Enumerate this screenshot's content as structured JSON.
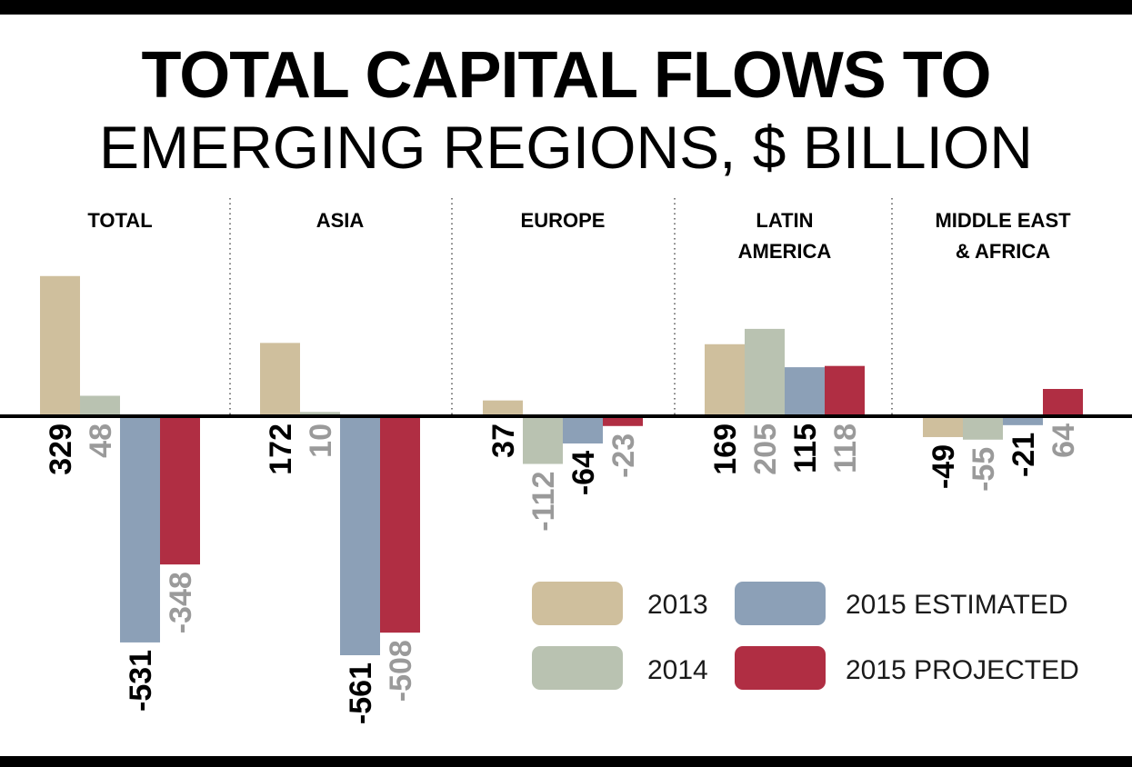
{
  "title_line1": "TOTAL CAPITAL FLOWS TO",
  "title_line2": "EMERGING REGIONS, $ BILLION",
  "chart_data": {
    "type": "bar",
    "title": "TOTAL CAPITAL FLOWS TO EMERGING REGIONS, $ BILLION",
    "series": [
      {
        "name": "2013",
        "color": "#cfbf9d"
      },
      {
        "name": "2014",
        "color": "#b9c2b1"
      },
      {
        "name": "2015 ESTIMATED",
        "color": "#8ca0b7"
      },
      {
        "name": "2015 PROJECTED",
        "color": "#b02e43"
      }
    ],
    "panels": [
      {
        "label_lines": [
          "TOTAL"
        ],
        "values": [
          329,
          48,
          -531,
          -348
        ]
      },
      {
        "label_lines": [
          "ASIA"
        ],
        "values": [
          172,
          10,
          -561,
          -508
        ]
      },
      {
        "label_lines": [
          "EUROPE"
        ],
        "values": [
          37,
          -112,
          -64,
          -23
        ]
      },
      {
        "label_lines": [
          "LATIN",
          "AMERICA"
        ],
        "values": [
          169,
          205,
          115,
          118
        ]
      },
      {
        "label_lines": [
          "MIDDLE EAST",
          "& AFRICA"
        ],
        "values": [
          -49,
          -55,
          -21,
          64
        ]
      }
    ],
    "label_colors": [
      "#000000",
      "#9a9a9a",
      "#000000",
      "#9a9a9a"
    ],
    "legend_position": "bottom-right"
  }
}
